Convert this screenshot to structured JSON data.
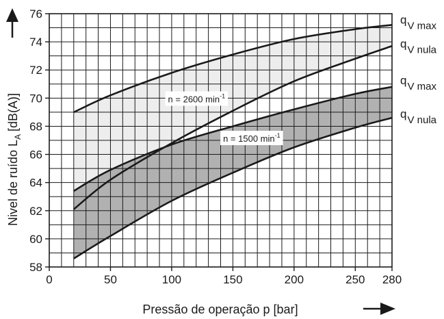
{
  "chart_data": {
    "type": "line",
    "title": "",
    "xlabel": "Pressão de operação p [bar]",
    "ylabel_main": "Nivel de ruído L",
    "ylabel_sub": "A",
    "ylabel_unit": "[dB(A)]",
    "xlim": [
      0,
      280
    ],
    "ylim": [
      58,
      76
    ],
    "x_ticks": [
      0,
      50,
      100,
      150,
      200,
      250,
      280
    ],
    "x_tick_labels": [
      "0",
      "50",
      "100",
      "150",
      "200",
      "250",
      "280"
    ],
    "y_ticks": [
      58,
      60,
      62,
      64,
      66,
      68,
      70,
      72,
      74,
      76
    ],
    "y_tick_labels": [
      "58",
      "60",
      "62",
      "64",
      "66",
      "68",
      "70",
      "72",
      "74",
      "76"
    ],
    "grid": true,
    "bands": [
      {
        "label": "n = 2600 min",
        "label_sup": "-1",
        "label_anchor": [
          97,
          69.7
        ],
        "fill": "#ececec",
        "upper": "qv_max_2600",
        "lower": "qv_nula_2600"
      },
      {
        "label": "n = 1500 min",
        "label_sup": "-1",
        "label_anchor": [
          142,
          66.9
        ],
        "fill": "#aaaaaa",
        "upper": "qv_max_1500",
        "lower": "qv_nula_1500"
      }
    ],
    "series": [
      {
        "id": "qv_max_2600",
        "name_main": "q",
        "name_sub": "V max",
        "x": [
          20,
          50,
          100,
          150,
          200,
          250,
          280
        ],
        "y": [
          69.0,
          70.2,
          71.8,
          73.1,
          74.2,
          74.9,
          75.2
        ]
      },
      {
        "id": "qv_nula_2600",
        "name_main": "q",
        "name_sub": "V nula",
        "x": [
          20,
          50,
          100,
          150,
          200,
          250,
          280
        ],
        "y": [
          62.1,
          64.2,
          66.8,
          69.1,
          71.2,
          72.8,
          73.7
        ]
      },
      {
        "id": "qv_max_1500",
        "name_main": "q",
        "name_sub": "V max",
        "x": [
          20,
          50,
          100,
          150,
          200,
          250,
          280
        ],
        "y": [
          63.4,
          64.9,
          66.7,
          68.0,
          69.2,
          70.3,
          70.8
        ]
      },
      {
        "id": "qv_nula_1500",
        "name_main": "q",
        "name_sub": "V nula",
        "x": [
          20,
          50,
          100,
          150,
          200,
          250,
          280
        ],
        "y": [
          58.6,
          60.2,
          62.7,
          64.7,
          66.5,
          67.9,
          68.6
        ]
      }
    ]
  }
}
